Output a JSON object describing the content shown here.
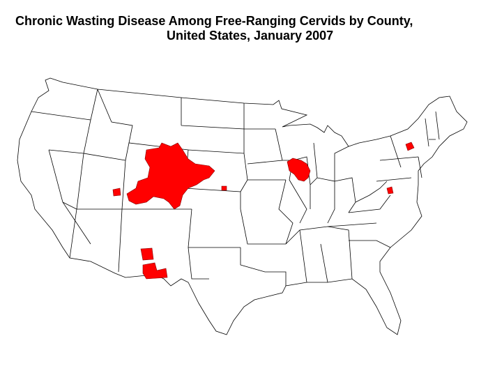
{
  "title": {
    "line1": "Chronic Wasting Disease Among Free-Ranging Cervids by County,",
    "line2": "United States, January 2007"
  }
}
